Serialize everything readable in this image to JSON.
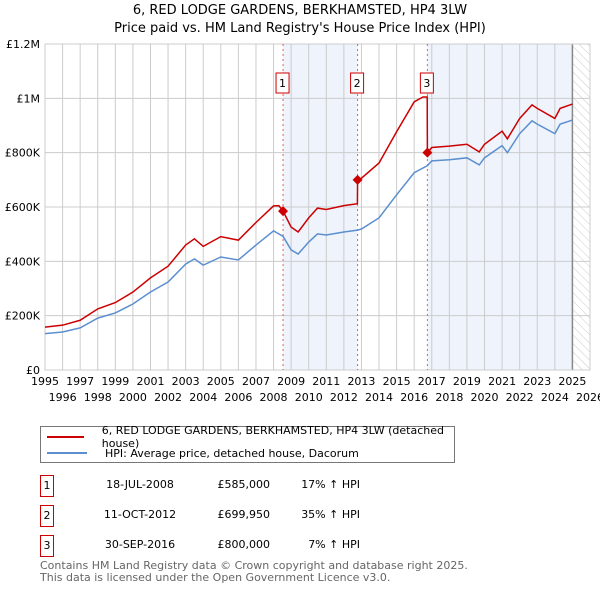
{
  "chart_data": {
    "type": "line",
    "title": "6, RED LODGE GARDENS, BERKHAMSTED, HP4 3LW",
    "subtitle": "Price paid vs. HM Land Registry's House Price Index (HPI)",
    "xlim": [
      1995,
      2026
    ],
    "ylim": [
      0,
      1200000
    ],
    "y_ticks": [
      {
        "v": 0,
        "label": "£0"
      },
      {
        "v": 200000,
        "label": "£200K"
      },
      {
        "v": 400000,
        "label": "£400K"
      },
      {
        "v": 600000,
        "label": "£600K"
      },
      {
        "v": 800000,
        "label": "£800K"
      },
      {
        "v": 1000000,
        "label": "£1M"
      },
      {
        "v": 1200000,
        "label": "£1.2M"
      }
    ],
    "x_ticks": [
      "1995",
      "1996",
      "1997",
      "1998",
      "1999",
      "2000",
      "2001",
      "2002",
      "2003",
      "2004",
      "2005",
      "2006",
      "2007",
      "2008",
      "2009",
      "2010",
      "2011",
      "2012",
      "2013",
      "2014",
      "2015",
      "2016",
      "2017",
      "2018",
      "2019",
      "2020",
      "2021",
      "2022",
      "2023",
      "2024",
      "2025",
      "2026"
    ],
    "grid": true,
    "shaded_ranges": [
      [
        2008.54,
        2012.78
      ],
      [
        2016.75,
        2025.0
      ]
    ],
    "forecast_hatch_from": 2025.0,
    "series": [
      {
        "name": "6, RED LODGE GARDENS, BERKHAMSTED, HP4 3LW (detached house)",
        "color": "#cc0000",
        "x": [
          1995,
          1996,
          1997,
          1998,
          1999,
          2000,
          2001,
          2002,
          2003,
          2003.5,
          2004,
          2005,
          2006,
          2007,
          2008,
          2008.3,
          2008.54,
          2009,
          2009.4,
          2010,
          2010.5,
          2011,
          2012,
          2012.77,
          2012.78,
          2013,
          2014,
          2015,
          2016,
          2016.5,
          2016.74,
          2016.75,
          2017,
          2018,
          2019,
          2019.7,
          2020,
          2021,
          2021.3,
          2022,
          2022.7,
          2023,
          2024,
          2024.3,
          2025
        ],
        "y": [
          158000,
          165000,
          183000,
          225000,
          248000,
          287000,
          339000,
          382000,
          460000,
          483000,
          455000,
          491000,
          478000,
          543000,
          604000,
          605000,
          585000,
          526000,
          508000,
          560000,
          596000,
          591000,
          605000,
          612000,
          699950,
          706000,
          762000,
          877000,
          987000,
          1005000,
          1005000,
          800000,
          819000,
          824000,
          831000,
          803000,
          831000,
          879000,
          851000,
          926000,
          976000,
          963000,
          926000,
          963000,
          979000
        ]
      },
      {
        "name": "HPI: Average price, detached house, Dacorum",
        "color": "#5b8fd0",
        "x": [
          1995,
          1996,
          1997,
          1998,
          1999,
          2000,
          2001,
          2002,
          2003,
          2003.5,
          2004,
          2005,
          2006,
          2007,
          2008,
          2008.54,
          2009,
          2009.4,
          2010,
          2010.5,
          2011,
          2012,
          2012.78,
          2013,
          2014,
          2015,
          2016,
          2016.75,
          2017,
          2018,
          2019,
          2019.7,
          2020,
          2021,
          2021.3,
          2022,
          2022.7,
          2023,
          2024,
          2024.3,
          2025
        ],
        "y": [
          134000,
          140000,
          155000,
          191000,
          210000,
          243000,
          287000,
          324000,
          390000,
          409000,
          386000,
          416000,
          405000,
          460000,
          512000,
          492000,
          442000,
          427000,
          471000,
          501000,
          497000,
          508000,
          515000,
          519000,
          560000,
          645000,
          726000,
          752000,
          770000,
          774000,
          781000,
          755000,
          781000,
          826000,
          800000,
          870000,
          917000,
          905000,
          870000,
          905000,
          920000
        ]
      }
    ],
    "sales": [
      {
        "num": "1",
        "x": 2008.54,
        "y": 585000,
        "date": "18-JUL-2008",
        "price": "£585,000",
        "hpi": "17% ↑ HPI"
      },
      {
        "num": "2",
        "x": 2012.78,
        "y": 699950,
        "date": "11-OCT-2012",
        "price": "£699,950",
        "hpi": "35% ↑ HPI"
      },
      {
        "num": "3",
        "x": 2016.75,
        "y": 800000,
        "date": "30-SEP-2016",
        "price": "£800,000",
        "hpi": "7% ↑ HPI"
      }
    ],
    "legend": {
      "placement": "below",
      "items": [
        "6, RED LODGE GARDENS, BERKHAMSTED, HP4 3LW (detached house)",
        "HPI: Average price, detached house, Dacorum"
      ]
    }
  },
  "footer": {
    "line1": "Contains HM Land Registry data © Crown copyright and database right 2025.",
    "line2": "This data is licensed under the Open Government Licence v3.0."
  }
}
